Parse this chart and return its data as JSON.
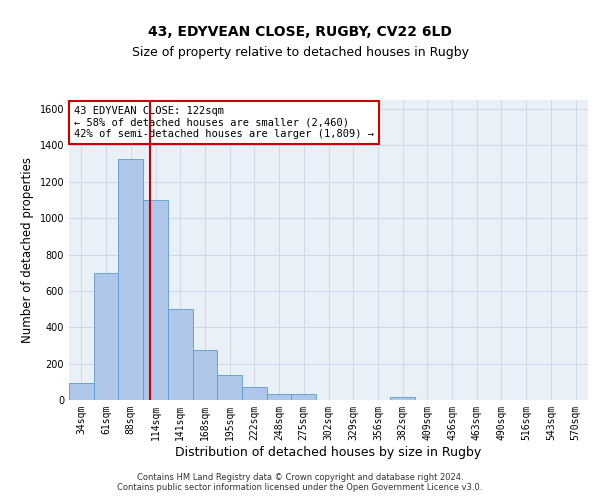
{
  "title1": "43, EDYVEAN CLOSE, RUGBY, CV22 6LD",
  "title2": "Size of property relative to detached houses in Rugby",
  "xlabel": "Distribution of detached houses by size in Rugby",
  "ylabel": "Number of detached properties",
  "footer": "Contains HM Land Registry data © Crown copyright and database right 2024.\nContains public sector information licensed under the Open Government Licence v3.0.",
  "bar_labels": [
    "34sqm",
    "61sqm",
    "88sqm",
    "114sqm",
    "141sqm",
    "168sqm",
    "195sqm",
    "222sqm",
    "248sqm",
    "275sqm",
    "302sqm",
    "329sqm",
    "356sqm",
    "382sqm",
    "409sqm",
    "436sqm",
    "463sqm",
    "490sqm",
    "516sqm",
    "543sqm",
    "570sqm"
  ],
  "bar_heights": [
    95,
    700,
    1325,
    1100,
    500,
    275,
    135,
    70,
    35,
    35,
    0,
    0,
    0,
    15,
    0,
    0,
    0,
    0,
    0,
    0,
    0
  ],
  "bar_color": "#aec6e8",
  "bar_edgecolor": "#5b9bd5",
  "annotation_line1": "43 EDYVEAN CLOSE: 122sqm",
  "annotation_line2": "← 58% of detached houses are smaller (2,460)",
  "annotation_line3": "42% of semi-detached houses are larger (1,809) →",
  "annotation_box_color": "#ffffff",
  "annotation_box_edgecolor": "#cc0000",
  "vline_color": "#cc0000",
  "ylim": [
    0,
    1650
  ],
  "yticks": [
    0,
    200,
    400,
    600,
    800,
    1000,
    1200,
    1400,
    1600
  ],
  "grid_color": "#d0d8e8",
  "bg_color": "#eaf0f8",
  "title1_fontsize": 10,
  "title2_fontsize": 9,
  "tick_fontsize": 7,
  "ylabel_fontsize": 8.5,
  "xlabel_fontsize": 9,
  "annotation_fontsize": 7.5,
  "footer_fontsize": 6
}
